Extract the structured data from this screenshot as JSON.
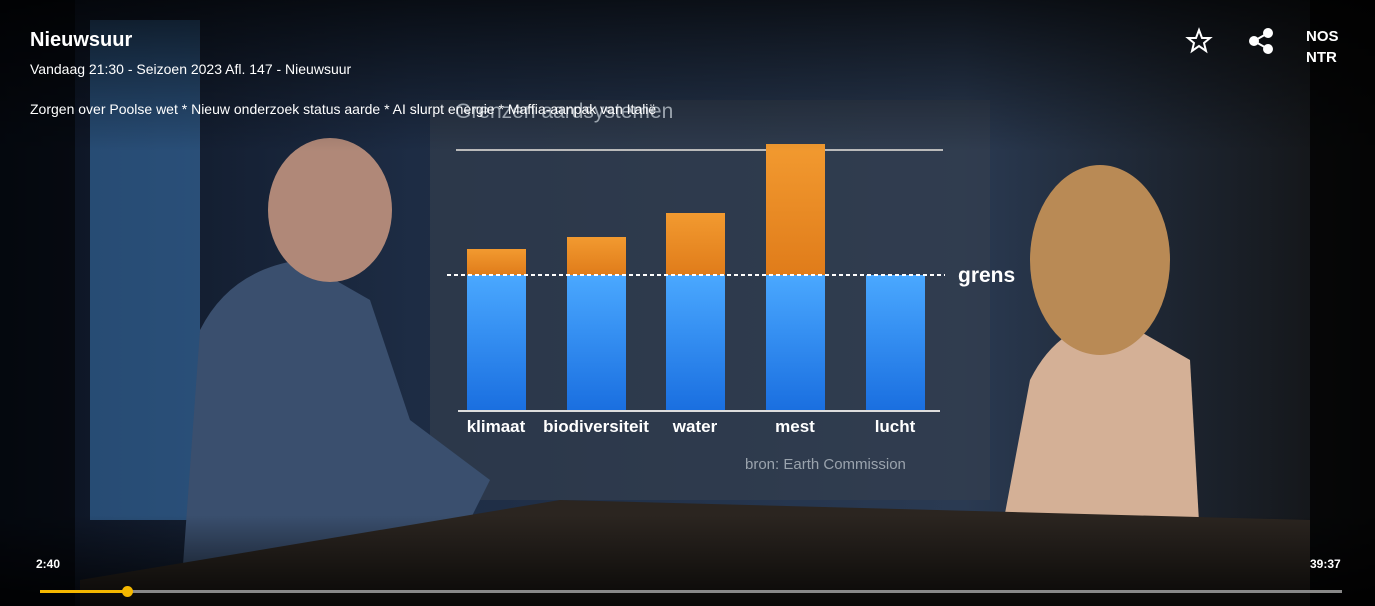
{
  "header": {
    "title": "Nieuwsuur",
    "subtitle": "Vandaag 21:30 - Seizoen 2023 Afl. 147 - Nieuwsuur",
    "description": "Zorgen over Poolse wet * Nieuw onderzoek status aarde * AI slurpt energie * Maffia-aanpak van Italië"
  },
  "broadcasters": [
    "NOS",
    "NTR"
  ],
  "player": {
    "current_time": "2:40",
    "duration": "39:37"
  },
  "screen": {
    "title": "Grenzen aardsystemen",
    "threshold_label": "grens",
    "categories": [
      "klimaat",
      "biodiversiteit",
      "water",
      "mest",
      "lucht"
    ],
    "source": "bron: Earth Commission"
  }
}
